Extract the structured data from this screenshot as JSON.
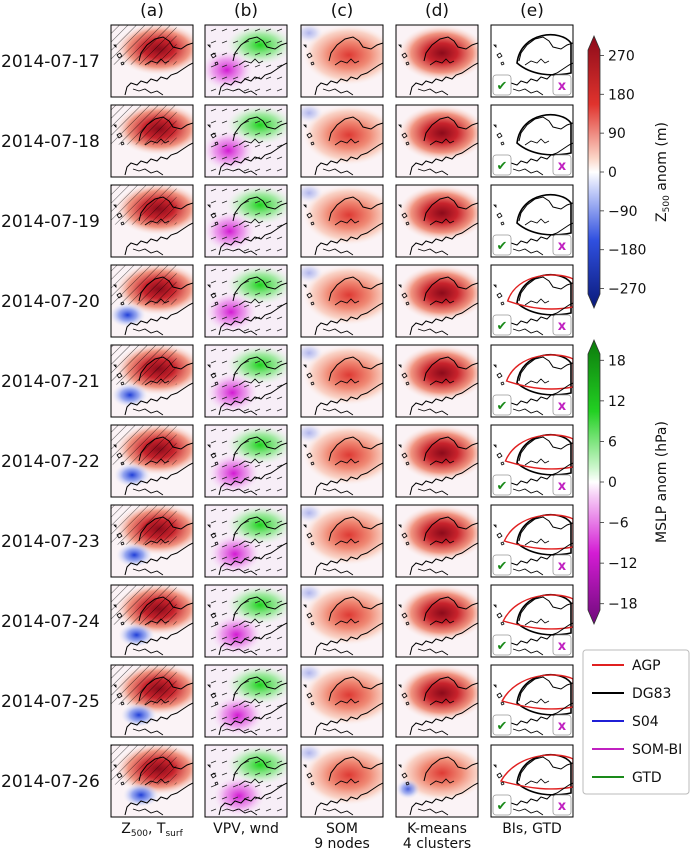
{
  "chart_data": {
    "type": "heatmap",
    "title": "",
    "column_titles": [
      "(a)",
      "(b)",
      "(c)",
      "(d)",
      "(e)"
    ],
    "column_captions": [
      {
        "main": "Z",
        "sub": "500",
        "rest": ", T",
        "sub2": "surf",
        "line2": ""
      },
      {
        "main": "VPV, wnd",
        "sub": "",
        "rest": "",
        "sub2": "",
        "line2": ""
      },
      {
        "main": "SOM",
        "sub": "",
        "rest": "",
        "sub2": "",
        "line2": "9 nodes"
      },
      {
        "main": "K-means",
        "sub": "",
        "rest": "",
        "sub2": "",
        "line2": "4 clusters"
      },
      {
        "main": "BIs, GTD",
        "sub": "",
        "rest": "",
        "sub2": "",
        "line2": ""
      }
    ],
    "dates": [
      "2014-07-17",
      "2014-07-18",
      "2014-07-19",
      "2014-07-20",
      "2014-07-21",
      "2014-07-22",
      "2014-07-23",
      "2014-07-24",
      "2014-07-25",
      "2014-07-26"
    ],
    "colorbars": [
      {
        "label_main": "Z",
        "label_sub": "500",
        "label_rest": " anom (m)",
        "ticks": [
          270,
          180,
          90,
          0,
          -90,
          -180,
          -270
        ],
        "tick_labels": [
          "270",
          "180",
          "90",
          "0",
          "−90",
          "−180",
          "−270"
        ],
        "range": [
          -315,
          315
        ],
        "colormap": "blue-white-red",
        "extend": "both"
      },
      {
        "label": "MSLP anom (hPa)",
        "ticks": [
          18,
          12,
          6,
          0,
          -6,
          -12,
          -18
        ],
        "tick_labels": [
          "18",
          "12",
          "6",
          "0",
          "−6",
          "−12",
          "−18"
        ],
        "range": [
          -21,
          21
        ],
        "colormap": "magenta-white-green",
        "extend": "both"
      }
    ],
    "legend": {
      "placement": "bottom-right",
      "entries": [
        {
          "name": "AGP",
          "color": "#e02020"
        },
        {
          "name": "DG83",
          "color": "#000000"
        },
        {
          "name": "S04",
          "color": "#1f1fd6"
        },
        {
          "name": "SOM-BI",
          "color": "#c020c0"
        },
        {
          "name": "GTD",
          "color": "#1a8a1a"
        }
      ]
    },
    "gtd_marks": {
      "positive_glyph": "✔",
      "negative_glyph": "x"
    },
    "panel_colors": {
      "z500_red_strong": "#b2182b",
      "z500_red_light": "#f4a582",
      "z500_blue": "#2166ac",
      "mslp_green": "#1ec81e",
      "mslp_magenta": "#d41cd4"
    }
  }
}
